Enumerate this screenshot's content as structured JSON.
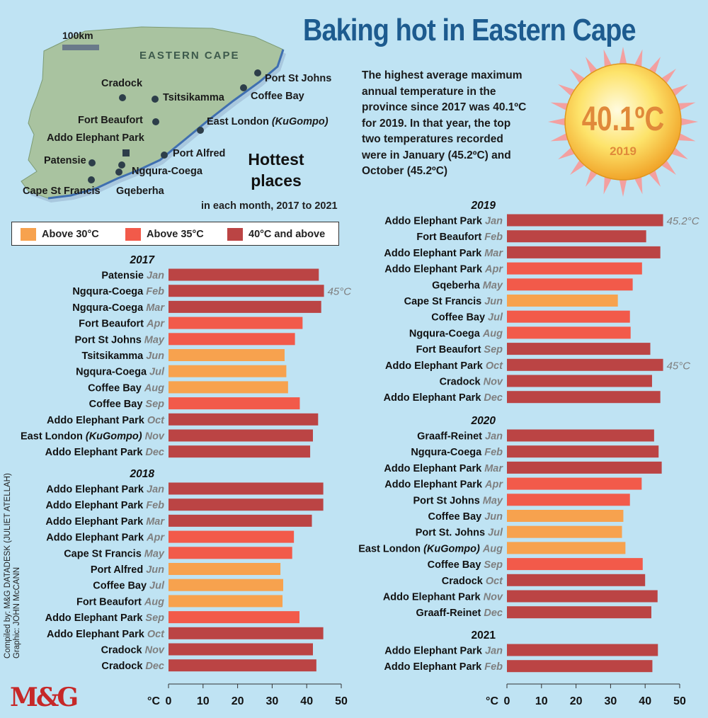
{
  "title": "Baking hot in Eastern Cape",
  "description": "The highest average maximum\nannual temperature in the\nprovince since 2017 was 40.1ºC\nfor 2019. In that year, the top\ntwo temperatures recorded\nwere in January (45.2ºC) and\nOctober (45.2ºC)",
  "sun": {
    "value": "40.1ºC",
    "year": "2019"
  },
  "hottest_title": "Hottest\nplaces",
  "hottest_sub": "in each month, 2017 to 2021",
  "credit": "Compiled by: M&G DATADESK (JULIET ATELLAH)\nGraphic: JOHN McCANN",
  "logo": "M&G",
  "map": {
    "region_label": "EASTERN CAPE",
    "scale_label": "100km",
    "places": [
      {
        "name": "Cradock",
        "italic": ""
      },
      {
        "name": "Tsitsikamma",
        "italic": ""
      },
      {
        "name": "Port St Johns",
        "italic": ""
      },
      {
        "name": "Coffee Bay",
        "italic": ""
      },
      {
        "name": "Fort Beaufort",
        "italic": ""
      },
      {
        "name": "East London ",
        "italic": "(KuGompo)"
      },
      {
        "name": "Addo Elephant Park",
        "italic": ""
      },
      {
        "name": "Port Alfred",
        "italic": ""
      },
      {
        "name": "Patensie",
        "italic": ""
      },
      {
        "name": "Ngqura-Coega",
        "italic": ""
      },
      {
        "name": "Cape St Francis",
        "italic": ""
      },
      {
        "name": "Gqeberha",
        "italic": ""
      }
    ]
  },
  "legend": [
    {
      "label": "Above 30°C",
      "color": "#f7a24e"
    },
    {
      "label": "Above 35°C",
      "color": "#f25a4a"
    },
    {
      "label": "40°C and above",
      "color": "#bb4444"
    }
  ],
  "colors": {
    "c30": "#f7a24e",
    "c35": "#f25a4a",
    "c40": "#bb4444",
    "month": "#7f7f7f"
  },
  "chart_data": [
    {
      "type": "bar",
      "orientation": "horizontal",
      "xlabel": "°C",
      "xlim": [
        0,
        50
      ],
      "xticks": [
        0,
        10,
        20,
        30,
        40,
        50
      ],
      "groups": [
        {
          "year": "2017",
          "rows": [
            {
              "place": "Patensie",
              "month": "Jan",
              "value": 43.5
            },
            {
              "place": "Ngqura-Coega",
              "month": "Feb",
              "value": 45,
              "label": "45°C"
            },
            {
              "place": "Ngqura-Coega",
              "month": "Mar",
              "value": 44.2
            },
            {
              "place": "Fort Beaufort",
              "month": "Apr",
              "value": 38.8
            },
            {
              "place": "Port St Johns",
              "month": "May",
              "value": 36.6
            },
            {
              "place": "Tsitsikamma",
              "month": "Jun",
              "value": 33.6
            },
            {
              "place": "Ngqura-Coega",
              "month": "Jul",
              "value": 34.1
            },
            {
              "place": "Coffee Bay",
              "month": "Aug",
              "value": 34.6
            },
            {
              "place": "Coffee Bay",
              "month": "Sep",
              "value": 38.0
            },
            {
              "place": "Addo Elephant Park",
              "month": "Oct",
              "value": 43.3
            },
            {
              "place": "East London ",
              "place_italic": "(KuGompo)",
              "month": "Nov",
              "value": 41.8
            },
            {
              "place": "Addo Elephant Park",
              "month": "Dec",
              "value": 41.0
            }
          ]
        },
        {
          "year": "2018",
          "rows": [
            {
              "place": "Addo Elephant Park",
              "month": "Jan",
              "value": 44.8
            },
            {
              "place": "Addo Elephant Park",
              "month": "Feb",
              "value": 44.8
            },
            {
              "place": "Addo Elephant Park",
              "month": "Mar",
              "value": 41.5
            },
            {
              "place": "Addo Elephant Park",
              "month": "Apr",
              "value": 36.3
            },
            {
              "place": "Cape St Francis",
              "month": "May",
              "value": 35.8
            },
            {
              "place": "Port Alfred",
              "month": "Jun",
              "value": 32.4
            },
            {
              "place": "Coffee Bay",
              "month": "Jul",
              "value": 33.2
            },
            {
              "place": "Fort Beaufort",
              "month": "Aug",
              "value": 33.0
            },
            {
              "place": "Addo Elephant Park",
              "month": "Sep",
              "value": 37.9
            },
            {
              "place": "Addo Elephant Park",
              "month": "Oct",
              "value": 44.8
            },
            {
              "place": "Cradock",
              "month": "Nov",
              "value": 41.8
            },
            {
              "place": "Cradock",
              "month": "Dec",
              "value": 42.8
            }
          ]
        }
      ]
    },
    {
      "type": "bar",
      "orientation": "horizontal",
      "xlabel": "°C",
      "xlim": [
        0,
        50
      ],
      "xticks": [
        0,
        10,
        20,
        30,
        40,
        50
      ],
      "groups": [
        {
          "year": "2019",
          "rows": [
            {
              "place": "Addo Elephant Park",
              "month": "Jan",
              "value": 45.2,
              "label": "45.2°C"
            },
            {
              "place": "Fort Beaufort",
              "month": "Feb",
              "value": 40.3
            },
            {
              "place": "Addo Elephant Park",
              "month": "Mar",
              "value": 44.4
            },
            {
              "place": "Addo Elephant Park",
              "month": "Apr",
              "value": 39.1
            },
            {
              "place": "Gqeberha",
              "month": "May",
              "value": 36.4
            },
            {
              "place": "Cape St Francis",
              "month": "Jun",
              "value": 32.1
            },
            {
              "place": "Coffee Bay",
              "month": "Jul",
              "value": 35.6
            },
            {
              "place": "Ngqura-Coega",
              "month": "Aug",
              "value": 35.8
            },
            {
              "place": "Fort Beaufort",
              "month": "Sep",
              "value": 41.5
            },
            {
              "place": "Addo Elephant Park",
              "month": "Oct",
              "value": 45.2,
              "label": "45°C"
            },
            {
              "place": "Cradock",
              "month": "Nov",
              "value": 42.0
            },
            {
              "place": "Addo Elephant Park",
              "month": "Dec",
              "value": 44.4
            }
          ]
        },
        {
          "year": "2020",
          "rows": [
            {
              "place": "Graaff-Reinet",
              "month": "Jan",
              "value": 42.6
            },
            {
              "place": "Ngqura-Coega",
              "month": "Feb",
              "value": 43.9
            },
            {
              "place": "Addo Elephant Park",
              "month": "Mar",
              "value": 44.8
            },
            {
              "place": "Addo Elephant Park",
              "month": "Apr",
              "value": 39.0
            },
            {
              "place": "Port St Johns",
              "month": "May",
              "value": 35.6
            },
            {
              "place": "Coffee Bay",
              "month": "Jun",
              "value": 33.7
            },
            {
              "place": "Port St. Johns",
              "month": "Jul",
              "value": 33.3
            },
            {
              "place": "East London ",
              "place_italic": "(KuGompo)",
              "month": "Aug",
              "value": 34.3
            },
            {
              "place": "Coffee Bay",
              "month": "Sep",
              "value": 39.3
            },
            {
              "place": "Cradock",
              "month": "Oct",
              "value": 40.0
            },
            {
              "place": "Addo Elephant Park",
              "month": "Nov",
              "value": 43.6
            },
            {
              "place": "Graaff-Reinet",
              "month": "Dec",
              "value": 41.8
            }
          ]
        },
        {
          "year": "2021",
          "year_italic": false,
          "rows": [
            {
              "place": "Addo Elephant Park",
              "month": "Jan",
              "value": 43.7
            },
            {
              "place": "Addo Elephant Park",
              "month": "Feb",
              "value": 42.1
            }
          ]
        }
      ]
    }
  ]
}
